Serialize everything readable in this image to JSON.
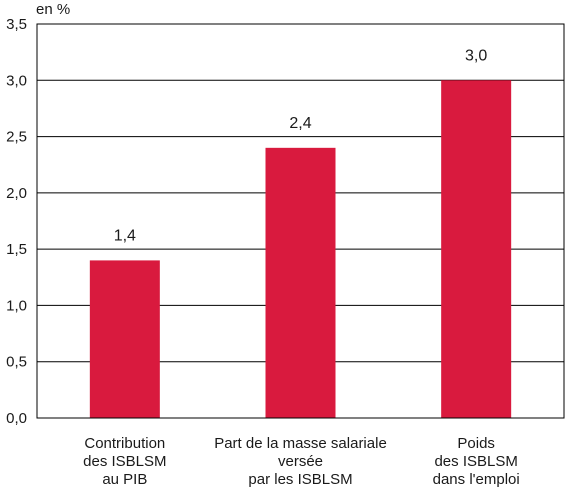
{
  "chart_data": {
    "type": "bar",
    "unit_label": "en %",
    "categories": [
      [
        "Contribution",
        "des ISBLSM",
        "au PIB"
      ],
      [
        "Part de la masse salariale",
        "versée",
        "par les ISBLSM"
      ],
      [
        "Poids",
        "des ISBLSM",
        "dans l'emploi"
      ]
    ],
    "values": [
      1.4,
      2.4,
      3.0
    ],
    "data_labels": [
      "1,4",
      "2,4",
      "3,0"
    ],
    "ylim": [
      0,
      3.5
    ],
    "yticks": [
      {
        "value": 0,
        "label": "0,0"
      },
      {
        "value": 0.5,
        "label": "0,5"
      },
      {
        "value": 1.0,
        "label": "1,0"
      },
      {
        "value": 1.5,
        "label": "1,5"
      },
      {
        "value": 2.0,
        "label": "2,0"
      },
      {
        "value": 2.5,
        "label": "2,5"
      },
      {
        "value": 3.0,
        "label": "3,0"
      },
      {
        "value": 3.5,
        "label": "3,5"
      }
    ],
    "grid": true,
    "colors": {
      "bar": "#d91a3e",
      "grid": "#000000",
      "text": "#1a1a1a"
    }
  }
}
